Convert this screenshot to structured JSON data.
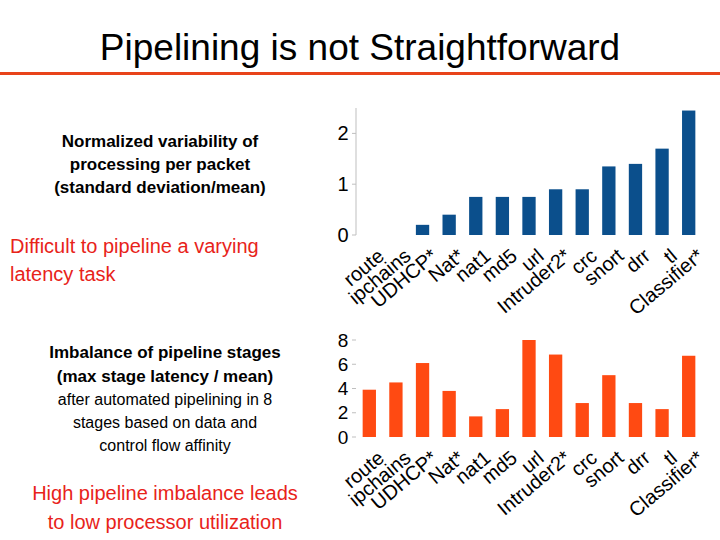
{
  "slide_title": "Pipelining is not Straightforward",
  "chart_data": [
    {
      "type": "bar",
      "title": [
        "Normalized variability of",
        "processing per packet",
        "(standard deviation/mean)"
      ],
      "annotation": [
        "Difficult to pipeline a varying",
        "latency task"
      ],
      "categories": [
        "route",
        "ipchains",
        "UDHCP*",
        "Nat*",
        "nat1",
        "md5",
        "url",
        "Intruder2*",
        "crc",
        "snort",
        "drr",
        "tl",
        "Classifier*"
      ],
      "values": [
        0,
        0,
        0.2,
        0.4,
        0.75,
        0.75,
        0.75,
        0.9,
        0.9,
        1.35,
        1.4,
        1.7,
        2.45
      ],
      "color": "#0b4f8c",
      "ylim": [
        0,
        2.5
      ],
      "yticks": [
        0,
        1,
        2
      ],
      "grid": false
    },
    {
      "type": "bar",
      "title": [
        "Imbalance of pipeline stages",
        "(max stage latency / mean)"
      ],
      "subtitle": [
        "after automated pipelining in 8",
        "stages based on data and",
        "control flow affinity"
      ],
      "annotation": [
        "High pipeline imbalance leads",
        "to low processor utilization"
      ],
      "categories": [
        "route",
        "ipchains",
        "UDHCP*",
        "Nat*",
        "nat1",
        "md5",
        "url",
        "Intruder2*",
        "crc",
        "snort",
        "drr",
        "tl",
        "Classifier*"
      ],
      "values": [
        3.9,
        4.5,
        6.1,
        3.8,
        1.7,
        2.3,
        8.0,
        6.8,
        2.8,
        5.1,
        2.8,
        2.3,
        6.7
      ],
      "color": "#ff4a12",
      "ylim": [
        0,
        8
      ],
      "yticks": [
        0,
        2,
        4,
        6,
        8
      ],
      "grid": false
    }
  ]
}
